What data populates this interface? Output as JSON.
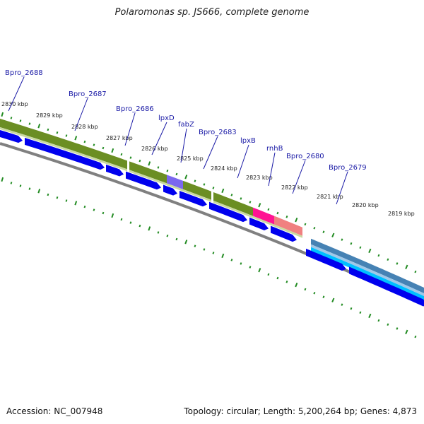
{
  "title": "Polaromonas sp. JS666, complete genome",
  "footer": {
    "accession": "Accession: NC_007948",
    "summary": "Topology: circular; Length: 5,200,264 bp; Genes: 4,873"
  },
  "ticks": [
    "2830 kbp",
    "2829 kbp",
    "2828 kbp",
    "2827 kbp",
    "2826 kbp",
    "2825 kbp",
    "2824 kbp",
    "2823 kbp",
    "2822 kbp",
    "2821 kbp",
    "2820 kbp",
    "2819 kbp"
  ],
  "genes": [
    "Bpro_2688",
    "Bpro_2687",
    "Bpro_2686",
    "lpxD",
    "fabZ",
    "Bpro_2683",
    "lpxB",
    "rnhB",
    "Bpro_2680",
    "Bpro_2679"
  ],
  "colors": {
    "cds": "#0000ee",
    "cog_olive": "#6b8e23",
    "cog_purple": "#7b68ee",
    "cog_magenta": "#ff1493",
    "cog_salmon": "#f08080",
    "cog_steel": "#4682b4",
    "cog_cyan": "#00bfff",
    "backbone": "#808080",
    "tick": "#228b22"
  }
}
